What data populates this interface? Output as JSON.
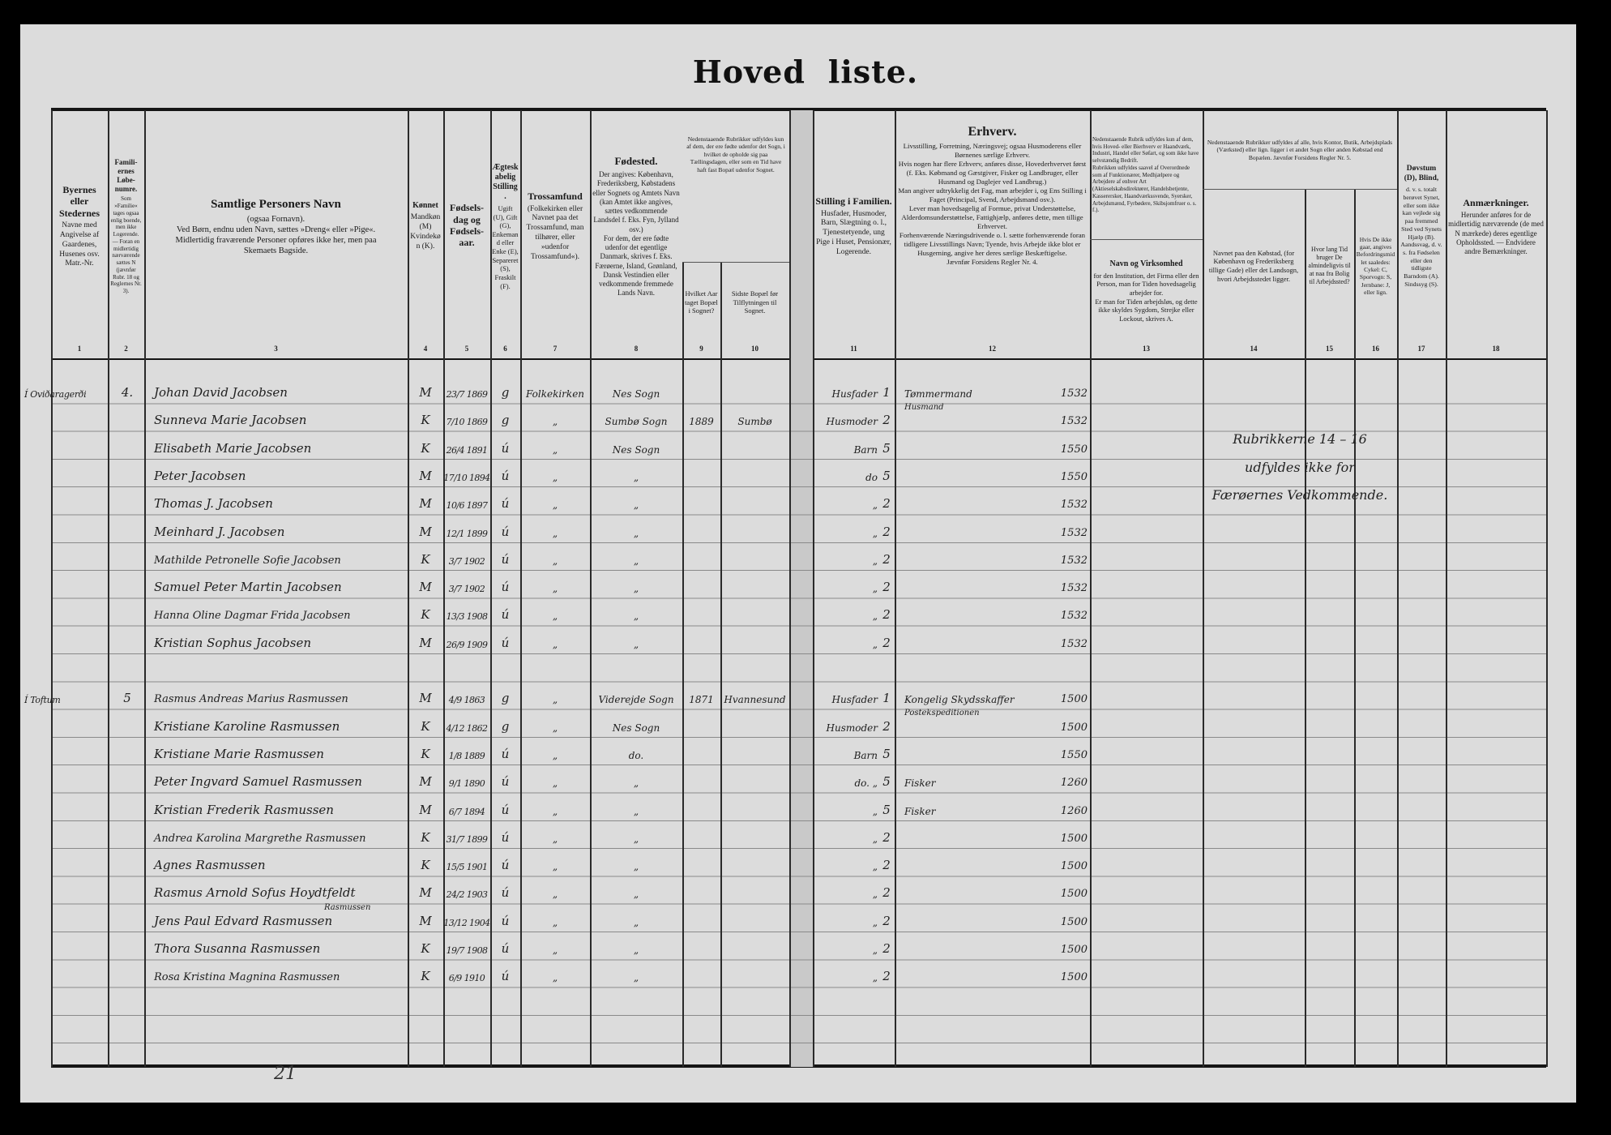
{
  "document": {
    "title_part1": "Hoved",
    "title_part2": "liste."
  },
  "header": {
    "cols": [
      {
        "num": "1",
        "title": "Byernes eller Stedernes",
        "body": "Navne med Angivelse af Gaardenes, Husenes osv. Matr.-Nr."
      },
      {
        "num": "2",
        "title": "Famili-ernes Løbe-numre.",
        "body": "Som »Familie« tages ogsaa enlig boende, men ikke Logerende. — Foran en midlertidig nærværende sættes N (jævnfør Rubr. 18 og Reglernes Nr. 3)."
      },
      {
        "num": "3",
        "title": "Samtlige Personers Navn",
        "body": "(ogsaa Fornavn).\nVed Børn, endnu uden Navn, sættes »Dreng« eller »Pige«.\nMidlertidig fraværende Personer opføres ikke her, men paa Skemaets Bagside."
      },
      {
        "num": "4",
        "title": "Kønnet",
        "body": "Mandkøn (M) Kvindekøn (K)."
      },
      {
        "num": "5",
        "title": "Fødsels-dag og Fødsels-aar.",
        "body": ""
      },
      {
        "num": "6",
        "title": "Ægteskabelig Stilling.",
        "body": "Ugift (U), Gift (G), Enkemand eller Enke (E), Separeret (S), Fraskilt (F)."
      },
      {
        "num": "7",
        "title": "Trossamfund",
        "body": "(Folkekirken eller Navnet paa det Trossamfund, man tilhører, eller »udenfor Trossamfund«)."
      },
      {
        "num": "8",
        "title": "Fødested.",
        "body": "Der angives: København, Frederiksberg, Købstadens eller Sognets og Amtets Navn (kan Amtet ikke angives, sættes vedkommende Landsdel f. Eks. Fyn, Jylland osv.)\nFor dem, der ere fødte udenfor det egentlige Danmark, skrives f. Eks. Færøerne, Island, Grønland, Dansk Vestindien eller vedkommende fremmede Lands Navn."
      },
      {
        "num": "9",
        "title": "",
        "body": "Hvilket Aar taget Bopæl i Sognet?"
      },
      {
        "num": "10",
        "title": "",
        "body": "Sidste Bopæl før Tilflytningen til Sognet."
      },
      {
        "num": "11",
        "title": "Stilling i Familien.",
        "body": "Husfader, Husmoder, Barn, Slægtning o. l., Tjenestetyende, ung Pige i Huset, Pensionær, Logerende."
      },
      {
        "num": "12",
        "title": "Erhverv.",
        "body": "Livsstilling, Forretning, Næringsvej; ogsaa Husmoderens eller Børnenes særlige Erhverv.\nHvis nogen har flere Erhverv, anføres disse, Hovederhvervet først (f. Eks. Købmand og Gæstgiver, Fisker og Landbruger, eller Husmand og Daglejer ved Landbrug.)\nMan angiver udtrykkelig det Fag, man arbejder i, og Ens Stilling i Faget (Principal, Svend, Arbejdsmand osv.).\nLever man hovedsagelig af Formue, privat Understøttelse, Alderdomsunderstøttelse, Fattighjælp, anføres dette, men tillige Erhvervet.\nForhenværende Næringsdrivende o. l. sætte forhenværende foran tidligere Livsstillings Navn; Tyende, hvis Arbejde ikke blot er Husgerning, angive her deres særlige Beskæftigelse.\nJævnfør Forsidens Regler Nr. 4."
      },
      {
        "num": "13",
        "title": "Navn og Virksomhed",
        "body": "for den Institution, det Firma eller den Person, man for Tiden hovedsagelig arbejder for.\nEr man for Tiden arbejdsløs, og dette ikke skyldes Sygdom, Strejke eller Lockout, skrives A."
      },
      {
        "num": "14",
        "title": "",
        "body": "Navnet paa den Købstad, (for København og Frederiksberg tillige Gade) eller det Landsogn, hvori Arbejdsstedet ligger."
      },
      {
        "num": "15",
        "title": "",
        "body": "Hvor lang Tid bruger De almindeligvis til at naa fra Bolig til Arbejdssted?"
      },
      {
        "num": "16",
        "title": "",
        "body": "Hvis De ikke gaar, angives Befordringsmidlet saaledes: Cykel: C, Sporvogn: S, Jernbane: J, eller lign."
      },
      {
        "num": "17",
        "title": "Døvstum (D), Blind,",
        "body": "d. v. s. totalt berøvet Synet, eller som ikke kan vejlede sig paa fremmed Sted ved Synets Hjælp (B). Aandssvag, d. v. s. fra Fødselen eller den tidligste Barndom (A). Sindssyg (S)."
      },
      {
        "num": "18",
        "title": "Anmærkninger.",
        "body": "Herunder anføres for de midlertidig nærværende (de med N mærkede) deres egentlige Opholdssted. — Endvidere andre Bemærkninger."
      }
    ],
    "note_9_10": "Nedenstaaende Rubrikker udfyldes kun af dem, der ere fødte udenfor det Sogn, i hvilket de opholde sig paa Tællingsdagen, eller som en Tid have haft fast Bopæl udenfor Sognet.",
    "note_13": "Nedenstaaende Rubrik udfyldes kun af dem, hvis Hoved- eller Bierhverv er Haandværk, Industri, Handel eller Søfart, og som ikke have selvstændig Bedrift.\nRubrikken udfyldes saavel af Overordnede som af Funktionærer, Medhjælpere og Arbejdere af enhver Art (Aktieselskabsdirektører, Handelsbetjente, Kasserersker, Haandværkssvende, Syersker, Arbejdsmænd, Fyrbødere, Skibsjomfruer o. s. f.).",
    "note_14_16": "Nedenstaaende Rubrikker udfyldes af alle, hvis Kontor, Butik, Arbejdsplads (Værksted) eller lign. ligger i et andet Sogn eller anden Købstad end Bopælen. Jævnfør Forsidens Regler Nr. 5."
  },
  "families": [
    {
      "place": "Í Oviðaragerði",
      "family_no": "4.",
      "start_row": 0,
      "persons": [
        {
          "name": "Johan David Jacobsen",
          "sex": "M",
          "birth": "23/7 1869",
          "marital": "g",
          "faith": "Folkekirken",
          "birthplace": "Nes Sogn",
          "year_moved": "",
          "last_residence": "",
          "family_position": "Husfader",
          "position_code": "1",
          "occupation": "Tømmermand",
          "occupation_2": "Husmand",
          "occupation_code": "1532"
        },
        {
          "name": "Sunneva Marie Jacobsen",
          "sex": "K",
          "birth": "7/10 1869",
          "marital": "g",
          "faith": "„",
          "birthplace": "Sumbø Sogn",
          "year_moved": "1889",
          "last_residence": "Sumbø",
          "family_position": "Husmoder",
          "position_code": "2",
          "occupation": "",
          "occupation_code": "1532"
        },
        {
          "name": "Elisabeth Marie Jacobsen",
          "sex": "K",
          "birth": "26/4 1891",
          "marital": "ú",
          "faith": "„",
          "birthplace": "Nes Sogn",
          "year_moved": "",
          "last_residence": "",
          "family_position": "Barn",
          "position_code": "5",
          "occupation": "",
          "occupation_code": "1550"
        },
        {
          "name": "Peter Jacobsen",
          "sex": "M",
          "birth": "17/10 1894",
          "marital": "ú",
          "faith": "„",
          "birthplace": "„",
          "year_moved": "",
          "last_residence": "",
          "family_position": "do",
          "position_code": "5",
          "occupation": "",
          "occupation_code": "1550"
        },
        {
          "name": "Thomas J. Jacobsen",
          "sex": "M",
          "birth": "10/6 1897",
          "marital": "ú",
          "faith": "„",
          "birthplace": "„",
          "year_moved": "",
          "last_residence": "",
          "family_position": "„",
          "position_code": "2",
          "occupation": "",
          "occupation_code": "1532"
        },
        {
          "name": "Meinhard J. Jacobsen",
          "sex": "M",
          "birth": "12/1 1899",
          "marital": "ú",
          "faith": "„",
          "birthplace": "„",
          "year_moved": "",
          "last_residence": "",
          "family_position": "„",
          "position_code": "2",
          "occupation": "",
          "occupation_code": "1532"
        },
        {
          "name": "Mathilde Petronelle Sofie Jacobsen",
          "sex": "K",
          "birth": "3/7 1902",
          "marital": "ú",
          "faith": "„",
          "birthplace": "„",
          "year_moved": "",
          "last_residence": "",
          "family_position": "„",
          "position_code": "2",
          "occupation": "",
          "occupation_code": "1532"
        },
        {
          "name": "Samuel Peter Martin Jacobsen",
          "sex": "M",
          "birth": "3/7 1902",
          "marital": "ú",
          "faith": "„",
          "birthplace": "„",
          "year_moved": "",
          "last_residence": "",
          "family_position": "„",
          "position_code": "2",
          "occupation": "",
          "occupation_code": "1532"
        },
        {
          "name": "Hanna Oline Dagmar Frida Jacobsen",
          "sex": "K",
          "birth": "13/3 1908",
          "marital": "ú",
          "faith": "„",
          "birthplace": "„",
          "year_moved": "",
          "last_residence": "",
          "family_position": "„",
          "position_code": "2",
          "occupation": "",
          "occupation_code": "1532"
        },
        {
          "name": "Kristian Sophus Jacobsen",
          "sex": "M",
          "birth": "26/9 1909",
          "marital": "ú",
          "faith": "„",
          "birthplace": "„",
          "year_moved": "",
          "last_residence": "",
          "family_position": "„",
          "position_code": "2",
          "occupation": "",
          "occupation_code": "1532"
        }
      ]
    },
    {
      "place": "Í Toftum",
      "family_no": "5",
      "start_row": 11,
      "persons": [
        {
          "name": "Rasmus Andreas Marius Rasmussen",
          "sex": "M",
          "birth": "4/9 1863",
          "marital": "g",
          "faith": "„",
          "birthplace": "Viderejde Sogn",
          "year_moved": "1871",
          "last_residence": "Hvannesund",
          "family_position": "Husfader",
          "position_code": "1",
          "occupation": "Kongelig Skydsskaffer",
          "occupation_2": "Postekspeditionen",
          "occupation_code": "1500"
        },
        {
          "name": "Kristiane Karoline Rasmussen",
          "sex": "K",
          "birth": "4/12 1862",
          "marital": "g",
          "faith": "„",
          "birthplace": "Nes Sogn",
          "year_moved": "",
          "last_residence": "",
          "family_position": "Husmoder",
          "position_code": "2",
          "occupation": "",
          "occupation_code": "1500"
        },
        {
          "name": "Kristiane Marie Rasmussen",
          "sex": "K",
          "birth": "1/8 1889",
          "marital": "ú",
          "faith": "„",
          "birthplace": "do.",
          "year_moved": "",
          "last_residence": "",
          "family_position": "Barn",
          "position_code": "5",
          "occupation": "",
          "occupation_code": "1550"
        },
        {
          "name": "Peter Ingvard Samuel Rasmussen",
          "sex": "M",
          "birth": "9/1 1890",
          "marital": "ú",
          "faith": "„",
          "birthplace": "„",
          "year_moved": "",
          "last_residence": "",
          "family_position": "do. „",
          "position_code": "5",
          "occupation": "Fisker",
          "occupation_code": "1260"
        },
        {
          "name": "Kristian Frederik Rasmussen",
          "sex": "M",
          "birth": "6/7 1894",
          "marital": "ú",
          "faith": "„",
          "birthplace": "„",
          "year_moved": "",
          "last_residence": "",
          "family_position": "„",
          "position_code": "5",
          "occupation": "Fisker",
          "occupation_code": "1260"
        },
        {
          "name": "Andrea Karolina Margrethe Rasmussen",
          "sex": "K",
          "birth": "31/7 1899",
          "marital": "ú",
          "faith": "„",
          "birthplace": "„",
          "year_moved": "",
          "last_residence": "",
          "family_position": "„",
          "position_code": "2",
          "occupation": "",
          "occupation_code": "1500"
        },
        {
          "name": "Agnes Rasmussen",
          "sex": "K",
          "birth": "15/5 1901",
          "marital": "ú",
          "faith": "„",
          "birthplace": "„",
          "year_moved": "",
          "last_residence": "",
          "family_position": "„",
          "position_code": "2",
          "occupation": "",
          "occupation_code": "1500"
        },
        {
          "name": "Rasmus Arnold Sofus Hoydtfeldt",
          "name_2": "Rasmussen",
          "sex": "M",
          "birth": "24/2 1903",
          "marital": "ú",
          "faith": "„",
          "birthplace": "„",
          "year_moved": "",
          "last_residence": "",
          "family_position": "„",
          "position_code": "2",
          "occupation": "",
          "occupation_code": "1500"
        },
        {
          "name": "Jens Paul Edvard Rasmussen",
          "sex": "M",
          "birth": "13/12 1904",
          "marital": "ú",
          "faith": "„",
          "birthplace": "„",
          "year_moved": "",
          "last_residence": "",
          "family_position": "„",
          "position_code": "2",
          "occupation": "",
          "occupation_code": "1500"
        },
        {
          "name": "Thora Susanna Rasmussen",
          "sex": "K",
          "birth": "19/7 1908",
          "marital": "ú",
          "faith": "„",
          "birthplace": "„",
          "year_moved": "",
          "last_residence": "",
          "family_position": "„",
          "position_code": "2",
          "occupation": "",
          "occupation_code": "1500"
        },
        {
          "name": "Rosa Kristina Magnina Rasmussen",
          "sex": "K",
          "birth": "6/9 1910",
          "marital": "ú",
          "faith": "„",
          "birthplace": "„",
          "year_moved": "",
          "last_residence": "",
          "family_position": "„",
          "position_code": "2",
          "occupation": "",
          "occupation_code": "1500"
        }
      ]
    }
  ],
  "annotation": {
    "line1": "Rubrikkerne 14 – 16",
    "line2": "udfyldes ikke for",
    "line3": "Færøernes Vedkommende."
  },
  "page_number": "21"
}
